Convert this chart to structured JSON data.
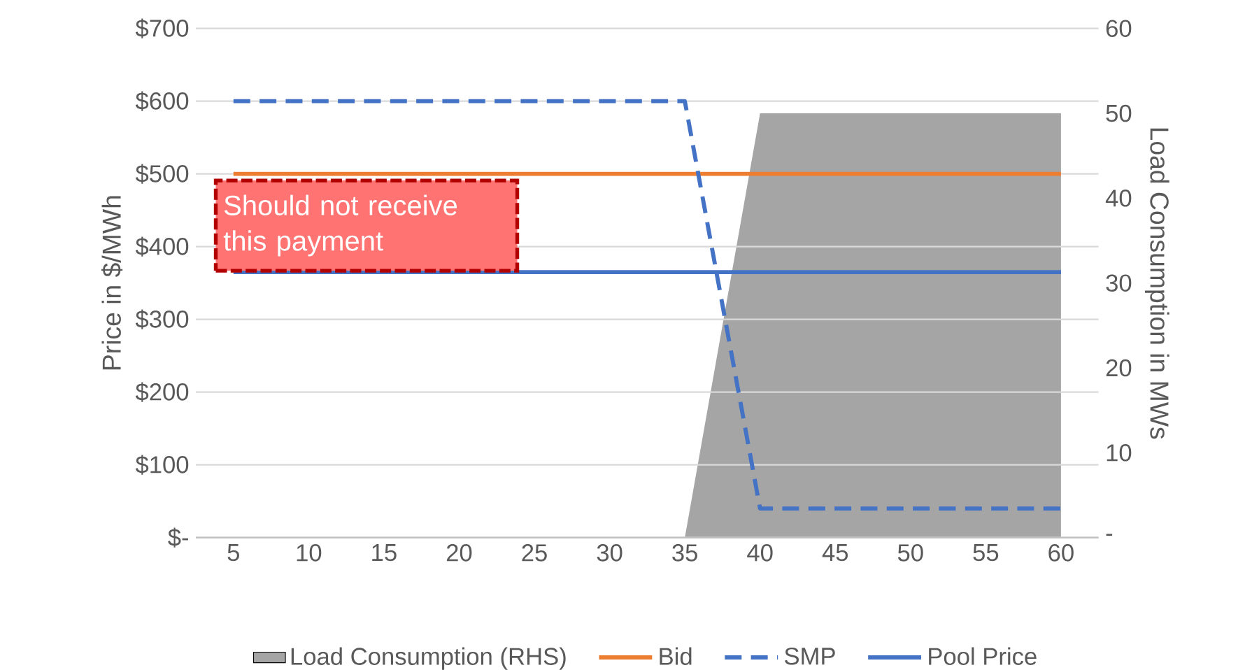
{
  "chart_data": {
    "type": "line",
    "ylabel": "Price in $/MWh",
    "y2label": "Load Consumption in MWs",
    "categories": [
      "5",
      "10",
      "15",
      "20",
      "25",
      "30",
      "35",
      "40",
      "45",
      "50",
      "55",
      "60"
    ],
    "series": [
      {
        "name": "Load Consumption (RHS)",
        "type": "area",
        "axis": "y2",
        "color": "#a5a5a5",
        "values": [
          0,
          0,
          0,
          0,
          0,
          0,
          0,
          50,
          50,
          50,
          50,
          50
        ]
      },
      {
        "name": "Bid",
        "color": "#ed7d31",
        "line_style": "solid",
        "values": [
          500,
          500,
          500,
          500,
          500,
          500,
          500,
          500,
          500,
          500,
          500,
          500
        ]
      },
      {
        "name": "SMP",
        "color": "#4472c4",
        "line_style": "dashed",
        "values": [
          600,
          600,
          600,
          600,
          600,
          600,
          600,
          40,
          40,
          40,
          40,
          40
        ]
      },
      {
        "name": "Pool Price",
        "color": "#4472c4",
        "line_style": "solid",
        "values": [
          365,
          365,
          365,
          365,
          365,
          365,
          365,
          365,
          365,
          365,
          365,
          365
        ]
      }
    ],
    "ylim": [
      0,
      700
    ],
    "yticks": [
      {
        "value": 0,
        "label": "$-"
      },
      {
        "value": 100,
        "label": "$100"
      },
      {
        "value": 200,
        "label": "$200"
      },
      {
        "value": 300,
        "label": "$300"
      },
      {
        "value": 400,
        "label": "$400"
      },
      {
        "value": 500,
        "label": "$500"
      },
      {
        "value": 600,
        "label": "$600"
      },
      {
        "value": 700,
        "label": "$700"
      }
    ],
    "y2lim": [
      0,
      60
    ],
    "y2ticks": [
      {
        "value": 0,
        "label": "-"
      },
      10,
      20,
      30,
      40,
      50,
      60
    ],
    "grid": "y",
    "legend": "bottom",
    "annotations": [
      "Should not receive this payment"
    ]
  }
}
